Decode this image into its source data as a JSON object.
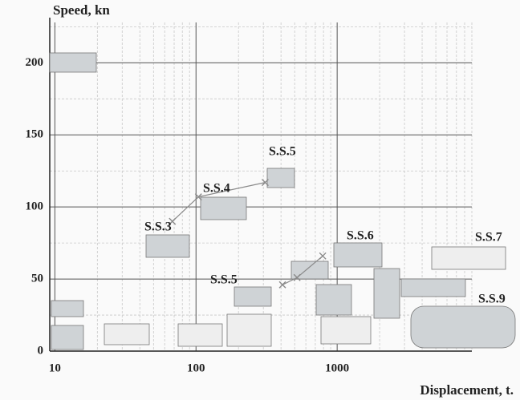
{
  "chart_data": {
    "type": "line",
    "x_label": "Displacement, t.",
    "y_label": "Speed, kn",
    "log_x": true,
    "grid": true,
    "xlim": [
      9.2,
      9000
    ],
    "ylim": [
      0,
      228
    ],
    "xticks": [
      10,
      100,
      1000
    ],
    "yticks": [
      0,
      50,
      100,
      150,
      200
    ],
    "xminorticks": [
      20,
      30,
      40,
      50,
      60,
      70,
      80,
      90,
      200,
      300,
      400,
      500,
      600,
      700,
      800,
      900,
      2000,
      3000,
      4000,
      5000,
      6000,
      7000,
      8000,
      9000
    ],
    "yminorticks": [
      25,
      75,
      125,
      175,
      225
    ],
    "series": [
      {
        "color": "#8a8a8a",
        "x": [
          68,
          104,
          309
        ],
        "values": [
          90,
          107,
          117
        ]
      },
      {
        "color": "#8a8a8a",
        "x": [
          410,
          520,
          790
        ],
        "values": [
          46,
          51,
          66
        ]
      }
    ],
    "annotations": [
      "S.S.3",
      "S.S.4",
      "S.S.5",
      "S.S.5",
      "S.S.6",
      "S.S.7",
      "S.S.9"
    ]
  }
}
